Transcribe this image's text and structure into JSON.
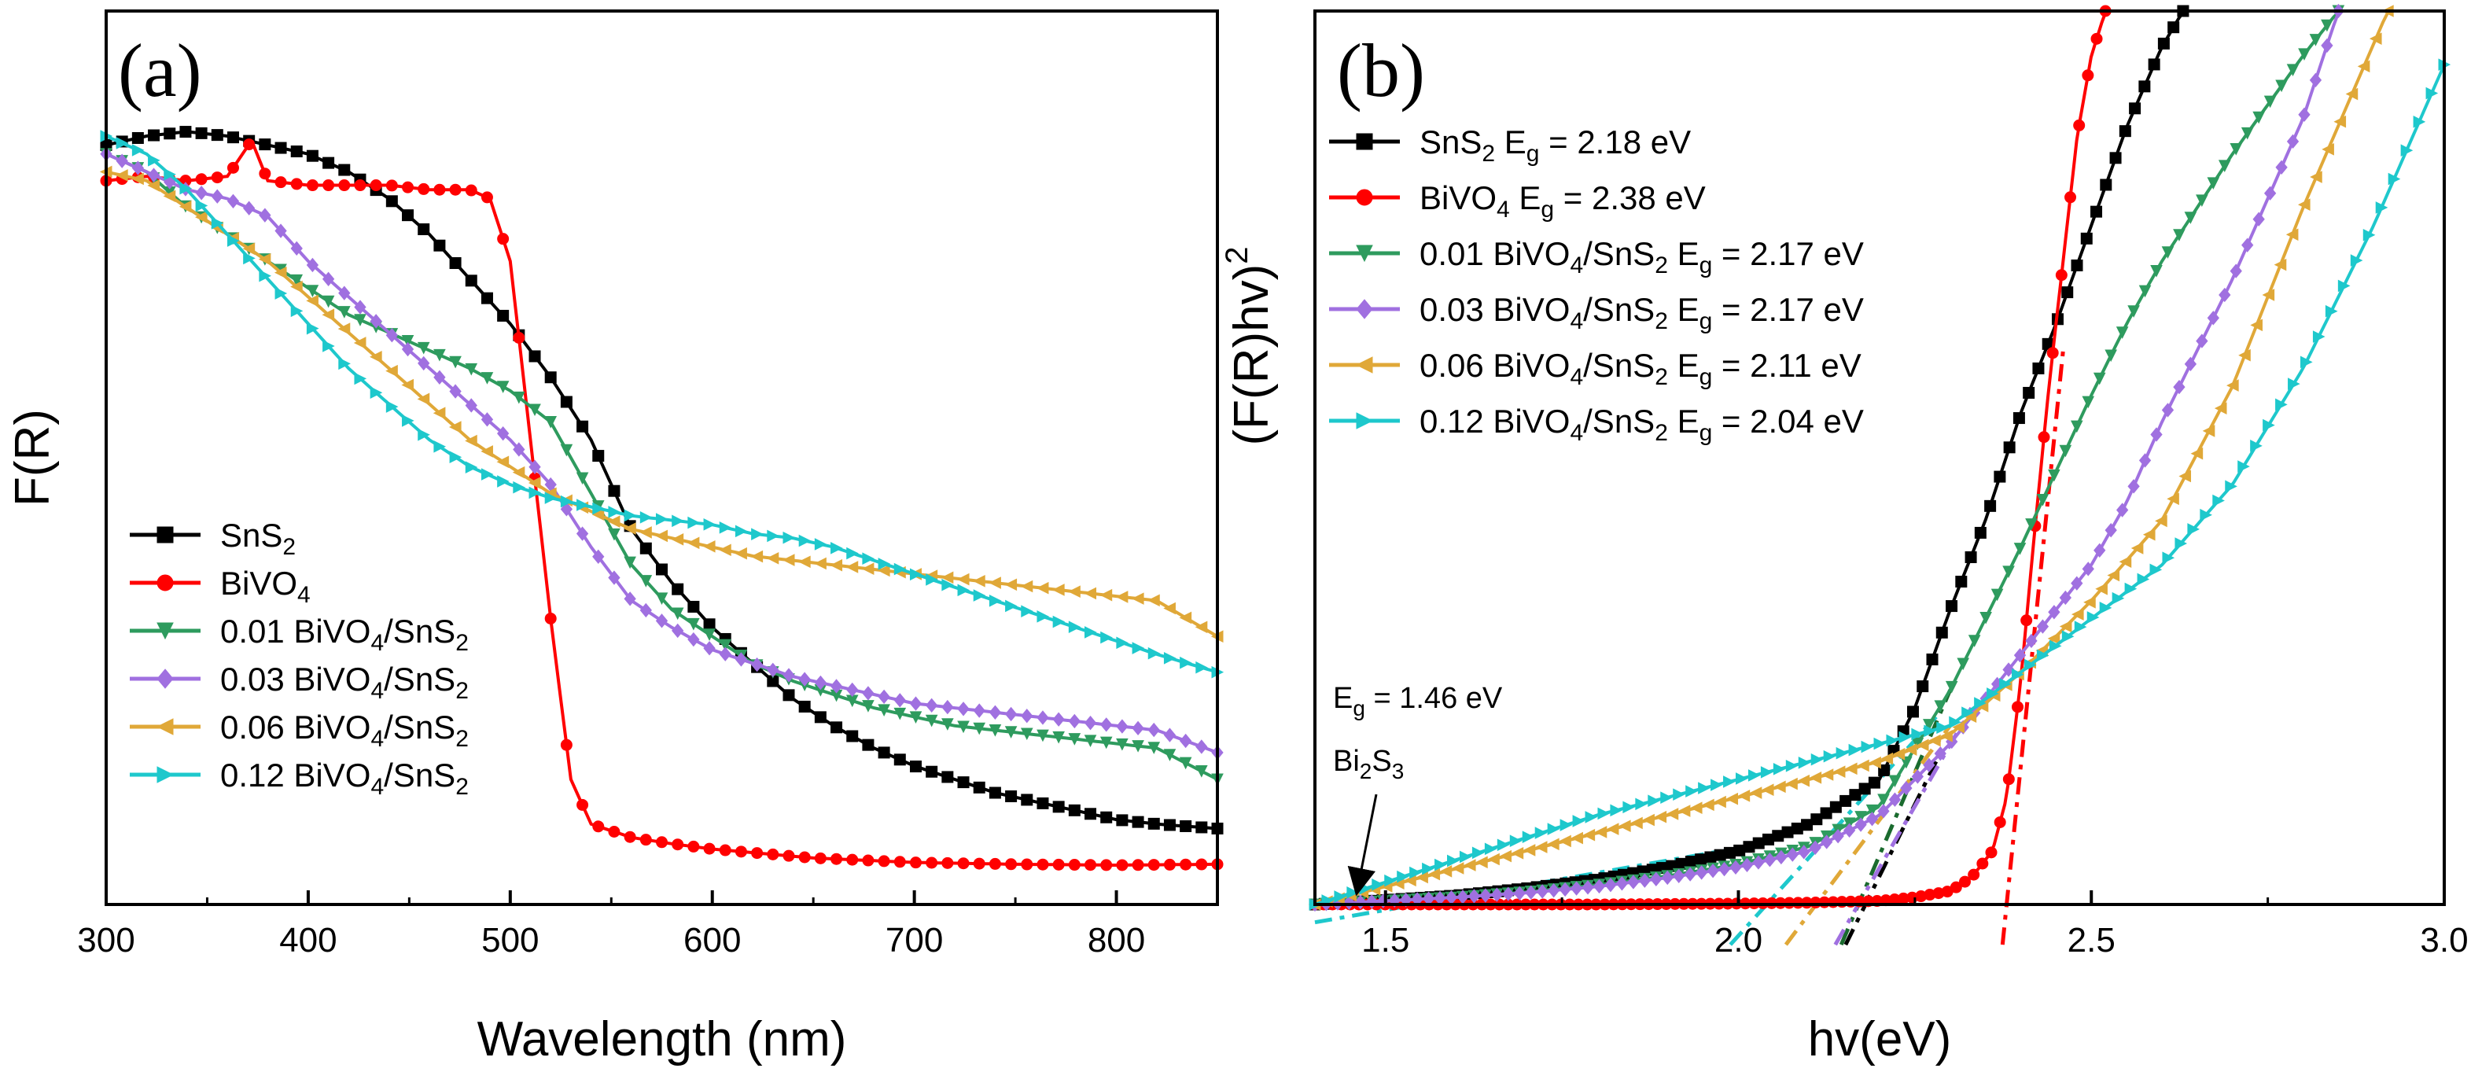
{
  "chart_data": [
    {
      "type": "line",
      "panel_label": "(a)",
      "xlabel": "Wavelength (nm)",
      "ylabel": "F(R)",
      "xlim": [
        300,
        850
      ],
      "ylim": [
        0,
        1
      ],
      "xticks": [
        "300",
        "400",
        "500",
        "600",
        "700",
        "800"
      ],
      "xtick_values": [
        300,
        400,
        500,
        600,
        700,
        800
      ],
      "y_ticks_shown": false,
      "legend_position": "bottom-left",
      "series": [
        {
          "name": "SnS2",
          "label_main": "SnS",
          "label_sub": "2",
          "color": "#000000",
          "marker": "square",
          "x": [
            300,
            320,
            340,
            360,
            380,
            400,
            420,
            440,
            460,
            480,
            500,
            520,
            540,
            560,
            580,
            600,
            620,
            640,
            660,
            680,
            700,
            720,
            740,
            760,
            780,
            800,
            820,
            850
          ],
          "y": [
            0.85,
            0.86,
            0.865,
            0.86,
            0.85,
            0.84,
            0.82,
            0.79,
            0.75,
            0.7,
            0.65,
            0.59,
            0.52,
            0.42,
            0.36,
            0.31,
            0.27,
            0.23,
            0.2,
            0.175,
            0.155,
            0.14,
            0.125,
            0.115,
            0.105,
            0.095,
            0.09,
            0.085
          ]
        },
        {
          "name": "BiVO4",
          "label_main": "BiVO",
          "label_sub": "4",
          "color": "#ff0000",
          "marker": "circle",
          "x": [
            300,
            320,
            340,
            360,
            372,
            380,
            400,
            420,
            440,
            460,
            480,
            490,
            500,
            510,
            520,
            530,
            540,
            560,
            580,
            600,
            650,
            700,
            750,
            800,
            850
          ],
          "y": [
            0.81,
            0.815,
            0.81,
            0.815,
            0.855,
            0.81,
            0.805,
            0.805,
            0.805,
            0.8,
            0.8,
            0.79,
            0.72,
            0.52,
            0.32,
            0.14,
            0.09,
            0.075,
            0.068,
            0.062,
            0.052,
            0.047,
            0.045,
            0.044,
            0.045
          ]
        },
        {
          "name": "0.01 BiVO4/SnS2",
          "label_main": "0.01 BiVO",
          "label_sub": "4",
          "label_mid": "/SnS",
          "label_sub2": "2",
          "color": "#2e9b5e",
          "marker": "triangle-down",
          "x": [
            300,
            320,
            340,
            360,
            380,
            400,
            420,
            440,
            460,
            480,
            500,
            520,
            540,
            560,
            580,
            600,
            620,
            640,
            660,
            680,
            700,
            720,
            740,
            760,
            780,
            800,
            820,
            850
          ],
          "y": [
            0.84,
            0.82,
            0.78,
            0.75,
            0.72,
            0.69,
            0.66,
            0.64,
            0.62,
            0.6,
            0.575,
            0.54,
            0.46,
            0.38,
            0.33,
            0.3,
            0.27,
            0.25,
            0.235,
            0.22,
            0.21,
            0.2,
            0.195,
            0.19,
            0.185,
            0.18,
            0.175,
            0.14
          ]
        },
        {
          "name": "0.03 BiVO4/SnS2",
          "label_main": "0.03 BiVO",
          "label_sub": "4",
          "label_mid": "/SnS",
          "label_sub2": "2",
          "color": "#a070e0",
          "marker": "diamond",
          "x": [
            300,
            320,
            340,
            360,
            380,
            400,
            420,
            440,
            460,
            480,
            500,
            520,
            540,
            560,
            580,
            600,
            620,
            640,
            660,
            680,
            700,
            720,
            740,
            760,
            780,
            800,
            820,
            850
          ],
          "y": [
            0.84,
            0.82,
            0.8,
            0.79,
            0.77,
            0.72,
            0.68,
            0.64,
            0.6,
            0.56,
            0.52,
            0.47,
            0.4,
            0.34,
            0.31,
            0.285,
            0.27,
            0.255,
            0.245,
            0.235,
            0.225,
            0.22,
            0.215,
            0.21,
            0.205,
            0.2,
            0.195,
            0.17
          ]
        },
        {
          "name": "0.06 BiVO4/SnS2",
          "label_main": "0.06 BiVO",
          "label_sub": "4",
          "label_mid": "/SnS",
          "label_sub2": "2",
          "color": "#e0a838",
          "marker": "triangle-left",
          "x": [
            300,
            320,
            340,
            360,
            380,
            400,
            420,
            440,
            460,
            480,
            500,
            520,
            540,
            560,
            580,
            600,
            620,
            640,
            660,
            680,
            700,
            720,
            740,
            760,
            780,
            800,
            820,
            850
          ],
          "y": [
            0.82,
            0.81,
            0.78,
            0.75,
            0.72,
            0.68,
            0.64,
            0.6,
            0.56,
            0.52,
            0.49,
            0.46,
            0.44,
            0.42,
            0.41,
            0.4,
            0.39,
            0.385,
            0.38,
            0.375,
            0.37,
            0.365,
            0.36,
            0.355,
            0.35,
            0.345,
            0.34,
            0.3
          ]
        },
        {
          "name": "0.12 BiVO4/SnS2",
          "label_main": "0.12 BiVO",
          "label_sub": "4",
          "label_mid": "/SnS",
          "label_sub2": "2",
          "color": "#1ec8cc",
          "marker": "triangle-right",
          "x": [
            300,
            320,
            340,
            360,
            380,
            400,
            420,
            440,
            460,
            480,
            500,
            520,
            540,
            560,
            580,
            600,
            620,
            640,
            660,
            680,
            700,
            720,
            740,
            760,
            780,
            800,
            820,
            850
          ],
          "y": [
            0.86,
            0.84,
            0.8,
            0.75,
            0.7,
            0.65,
            0.6,
            0.56,
            0.52,
            0.49,
            0.47,
            0.455,
            0.445,
            0.435,
            0.43,
            0.425,
            0.415,
            0.41,
            0.4,
            0.385,
            0.37,
            0.355,
            0.34,
            0.325,
            0.31,
            0.295,
            0.28,
            0.26
          ]
        }
      ]
    },
    {
      "type": "line",
      "panel_label": "(b)",
      "xlabel": "hv(eV)",
      "ylabel_main": "(F(R)hv)",
      "ylabel_sup": "2",
      "xlim": [
        1.4,
        3.0
      ],
      "ylim": [
        0,
        1
      ],
      "xticks": [
        "1.5",
        "2.0",
        "2.5",
        "3.0"
      ],
      "xtick_values": [
        1.5,
        2.0,
        2.5,
        3.0
      ],
      "y_ticks_shown": false,
      "legend_position": "top-left",
      "annotation": {
        "eg_prefix": "E",
        "eg_sub": "g",
        "eg_text": " = 1.46 eV",
        "phase_a": "Bi",
        "phase_sub1": "2",
        "phase_b": "S",
        "phase_sub2": "3",
        "x": 1.46
      },
      "series": [
        {
          "name": "SnS2",
          "eg_label": "2.18 eV",
          "eg": 2.18,
          "color": "#000000",
          "marker": "square",
          "x": [
            1.4,
            1.5,
            1.6,
            1.7,
            1.8,
            1.9,
            2.0,
            2.1,
            2.2,
            2.25,
            2.3,
            2.35,
            2.4,
            2.45,
            2.5,
            2.55,
            2.6,
            2.63
          ],
          "y": [
            0.0,
            0.005,
            0.01,
            0.018,
            0.028,
            0.042,
            0.06,
            0.09,
            0.14,
            0.22,
            0.33,
            0.43,
            0.55,
            0.65,
            0.76,
            0.87,
            0.96,
            1.0
          ]
        },
        {
          "name": "BiVO4",
          "eg_label": "2.38 eV",
          "eg": 2.38,
          "color": "#ff0000",
          "marker": "circle",
          "x": [
            1.4,
            1.6,
            1.8,
            2.0,
            2.1,
            2.2,
            2.25,
            2.3,
            2.33,
            2.36,
            2.38,
            2.4,
            2.42,
            2.44,
            2.46,
            2.48,
            2.5,
            2.52
          ],
          "y": [
            0.0,
            0.0,
            0.0,
            0.001,
            0.002,
            0.004,
            0.008,
            0.015,
            0.03,
            0.06,
            0.12,
            0.25,
            0.42,
            0.58,
            0.72,
            0.86,
            0.95,
            1.0
          ]
        },
        {
          "name": "0.01 BiVO4/SnS2",
          "eg_label": "2.17 eV",
          "eg": 2.17,
          "color": "#2e9b5e",
          "marker": "triangle-down",
          "x": [
            1.4,
            1.5,
            1.6,
            1.7,
            1.8,
            1.9,
            2.0,
            2.1,
            2.2,
            2.3,
            2.4,
            2.5,
            2.55,
            2.6,
            2.7,
            2.8,
            2.85
          ],
          "y": [
            0.0,
            0.004,
            0.008,
            0.014,
            0.022,
            0.032,
            0.045,
            0.065,
            0.11,
            0.24,
            0.4,
            0.57,
            0.65,
            0.72,
            0.84,
            0.95,
            1.0
          ]
        },
        {
          "name": "0.03 BiVO4/SnS2",
          "eg_label": "2.17 eV",
          "eg": 2.17,
          "color": "#a070e0",
          "marker": "diamond",
          "x": [
            1.4,
            1.5,
            1.6,
            1.7,
            1.8,
            1.9,
            2.0,
            2.1,
            2.2,
            2.3,
            2.4,
            2.5,
            2.55,
            2.6,
            2.7,
            2.8,
            2.85
          ],
          "y": [
            0.0,
            0.004,
            0.008,
            0.013,
            0.02,
            0.03,
            0.042,
            0.06,
            0.1,
            0.18,
            0.28,
            0.38,
            0.45,
            0.54,
            0.7,
            0.88,
            1.0
          ]
        },
        {
          "name": "0.06 BiVO4/SnS2",
          "eg_label": "2.11 eV",
          "eg": 2.11,
          "color": "#e0a838",
          "marker": "triangle-left",
          "x": [
            1.4,
            1.5,
            1.6,
            1.7,
            1.8,
            1.9,
            2.0,
            2.1,
            2.2,
            2.3,
            2.4,
            2.5,
            2.6,
            2.7,
            2.8,
            2.92
          ],
          "y": [
            0.0,
            0.02,
            0.04,
            0.06,
            0.08,
            0.1,
            0.12,
            0.14,
            0.16,
            0.19,
            0.26,
            0.34,
            0.43,
            0.58,
            0.78,
            1.0
          ]
        },
        {
          "name": "0.12 BiVO4/SnS2",
          "eg_label": "2.04 eV",
          "eg": 2.04,
          "color": "#1ec8cc",
          "marker": "triangle-right",
          "x": [
            1.4,
            1.5,
            1.6,
            1.7,
            1.8,
            1.9,
            2.0,
            2.1,
            2.2,
            2.3,
            2.4,
            2.5,
            2.6,
            2.7,
            2.8,
            2.9,
            3.0
          ],
          "y": [
            0.0,
            0.025,
            0.05,
            0.075,
            0.1,
            0.12,
            0.14,
            0.16,
            0.18,
            0.2,
            0.26,
            0.32,
            0.38,
            0.47,
            0.6,
            0.76,
            0.94
          ]
        }
      ]
    }
  ],
  "legend_b_text": {
    "eg_prefix": "E",
    "eg_sub": "g",
    "eq": " = "
  }
}
